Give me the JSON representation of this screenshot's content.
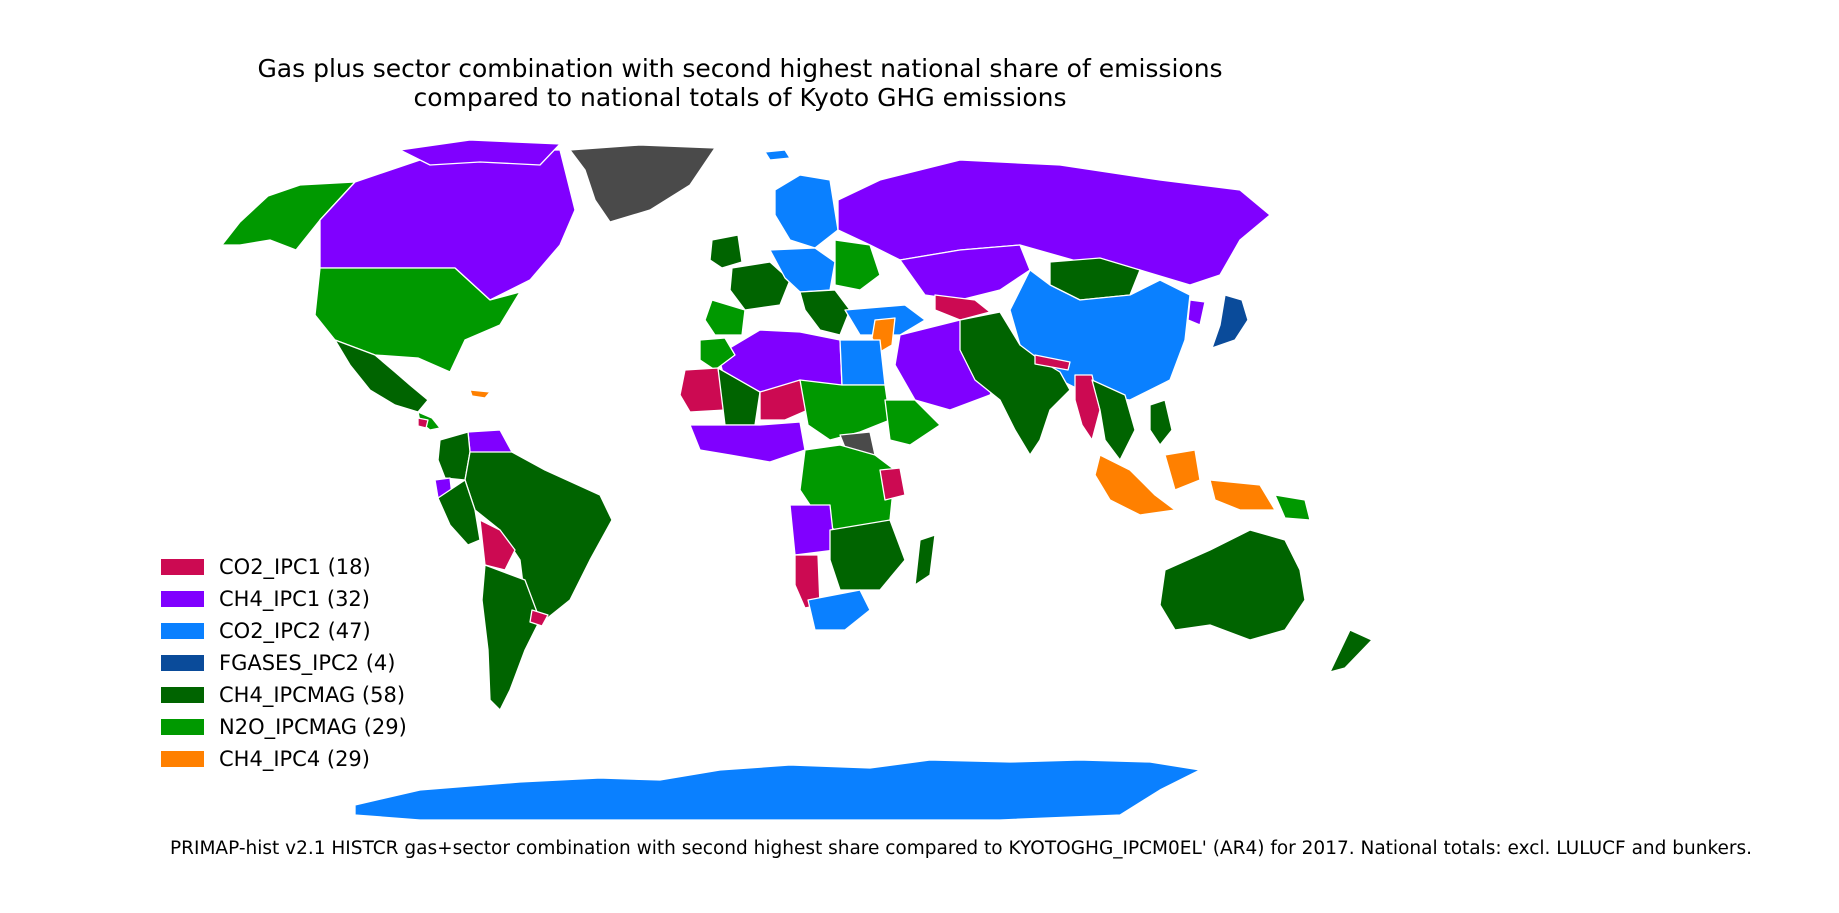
{
  "title": "Gas plus sector combination with second highest national share of emissions\ncompared to national totals of Kyoto GHG emissions",
  "colors": {
    "CO2_IPC1": "#cc0a52",
    "CH4_IPC1": "#8000ff",
    "CO2_IPC2": "#0a80ff",
    "FGASES_IPC2": "#0a4b9a",
    "CH4_IPCMAG": "#006400",
    "N2O_IPCMAG": "#009900",
    "CH4_IPC4": "#ff8000",
    "no_data": "#4a4a4a",
    "border": "#ffffff"
  },
  "legend": [
    {
      "label": "CO2_IPC1 (18)",
      "color": "#cc0a52"
    },
    {
      "label": "CH4_IPC1 (32)",
      "color": "#8000ff"
    },
    {
      "label": "CO2_IPC2 (47)",
      "color": "#0a80ff"
    },
    {
      "label": "FGASES_IPC2 (4)",
      "color": "#0a4b9a"
    },
    {
      "label": "CH4_IPCMAG (58)",
      "color": "#006400"
    },
    {
      "label": "N2O_IPCMAG (29)",
      "color": "#009900"
    },
    {
      "label": "CH4_IPC4 (29)",
      "color": "#ff8000"
    }
  ],
  "footnote": "PRIMAP-hist v2.1 HISTCR gas+sector combination with second highest share compared to KYOTOGHG_IPCM0EL' (AR4) for 2017. National totals: excl. LULUCF and bunkers."
}
